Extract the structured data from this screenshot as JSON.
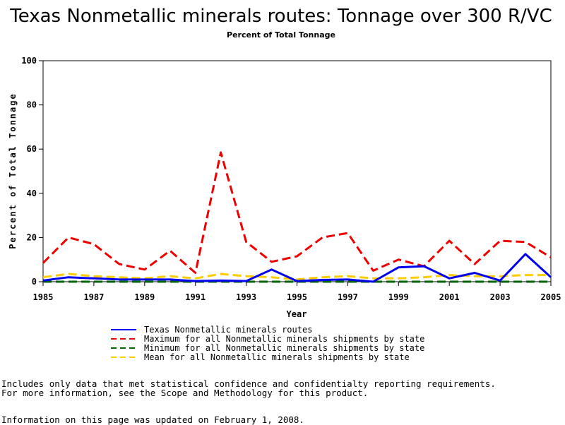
{
  "chart_data": {
    "type": "line",
    "title": "Texas Nonmetallic minerals routes: Tonnage over 300 R/VC",
    "subtitle": "Percent of Total Tonnage",
    "xlabel": "Year",
    "ylabel": "Percent of Total Tonnage",
    "xlim": [
      1985,
      2005
    ],
    "ylim": [
      0,
      100
    ],
    "x_ticks": [
      "1985",
      "1987",
      "1989",
      "1991",
      "1993",
      "1995",
      "1997",
      "1999",
      "2001",
      "2003",
      "2005"
    ],
    "y_ticks": [
      "0",
      "20",
      "40",
      "60",
      "80",
      "100"
    ],
    "grid": false,
    "legend_position": "bottom",
    "x": [
      1985,
      1986,
      1987,
      1988,
      1989,
      1990,
      1991,
      1992,
      1993,
      1994,
      1995,
      1996,
      1997,
      1998,
      1999,
      2000,
      2001,
      2002,
      2003,
      2004,
      2005
    ],
    "series": [
      {
        "name": "Texas Nonmetallic minerals routes",
        "color": "#0000ee",
        "dash": "solid",
        "values": [
          0.5,
          2.0,
          1.5,
          1.0,
          1.0,
          1.0,
          0.3,
          0.5,
          0.3,
          5.5,
          0.3,
          0.8,
          1.0,
          0.0,
          6.5,
          7.0,
          1.5,
          4.0,
          0.5,
          12.5,
          2.0
        ]
      },
      {
        "name": "Maximum for all Nonmetallic minerals shipments by state",
        "color": "#ee0000",
        "dash": "dashed",
        "values": [
          8.5,
          20.0,
          17.0,
          8.0,
          5.5,
          14.0,
          4.0,
          58.5,
          18.0,
          9.0,
          11.5,
          20.0,
          22.0,
          5.0,
          10.0,
          7.0,
          18.5,
          8.0,
          18.5,
          18.0,
          11.0
        ]
      },
      {
        "name": "Minimum for all Nonmetallic minerals shipments by state",
        "color": "#006600",
        "dash": "dashed",
        "values": [
          0,
          0,
          0,
          0,
          0,
          0,
          0,
          0,
          0,
          0,
          0,
          0,
          0,
          0,
          0,
          0,
          0,
          0,
          0,
          0,
          0
        ]
      },
      {
        "name": "Mean for all Nonmetallic minerals shipments by state",
        "color": "#ffcc00",
        "dash": "dashed",
        "values": [
          2.0,
          3.5,
          2.5,
          2.0,
          1.5,
          2.5,
          1.5,
          3.5,
          2.5,
          2.0,
          1.0,
          2.0,
          2.5,
          1.5,
          1.5,
          2.0,
          3.0,
          2.5,
          2.5,
          3.0,
          3.0
        ]
      }
    ]
  },
  "notes": {
    "line1": "Includes only data that met statistical confidence and confidentialty reporting requirements.",
    "line2": "For more information, see the Scope and Methodology for this product.",
    "updated": "Information on this page was updated on February 1, 2008."
  }
}
